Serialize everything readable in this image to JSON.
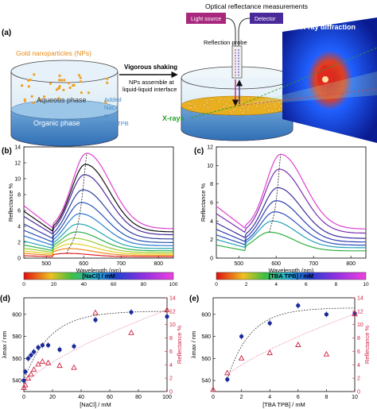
{
  "panel_a": {
    "label": "(a)",
    "np_label": "Gold nanoparticles (NPs)",
    "aqueous": "Aqueous phase",
    "organic": "Organic phase",
    "added": "Added",
    "nacl": "NaCl",
    "or": "or",
    "tbatpb": "TBA TPB",
    "shaking": "Vigorous shaking",
    "assemble1": "NPs assemble at",
    "assemble2": "liquid-liquid interface",
    "orm": "Optical reflectance measurements",
    "light_source": "Light source",
    "detector": "Detector",
    "probe": "Reflection probe",
    "xray_diff": "X-ray diffraction",
    "xrays": "X-rays"
  },
  "colorbar_nacl": {
    "label": "[NaCl] / mM",
    "ticks": [
      "0",
      "20",
      "40",
      "60",
      "80",
      "100"
    ]
  },
  "colorbar_tba": {
    "label": "[TBA TPB] / mM",
    "ticks": [
      "0",
      "2",
      "4",
      "6",
      "8",
      "10"
    ]
  },
  "chart_data": [
    {
      "type": "line",
      "panel": "(b)",
      "xlabel": "Wavelength (nm)",
      "ylabel": "Reflectance %",
      "xlim": [
        440,
        840
      ],
      "ylim": [
        0,
        14
      ],
      "xticks": [
        "500",
        "600",
        "700",
        "800"
      ],
      "yticks": [
        "0",
        "2",
        "4",
        "6",
        "8",
        "10",
        "12",
        "14"
      ],
      "series": [
        {
          "peak_nm": 608,
          "peak_val": 13.2,
          "color": "#e040d0"
        },
        {
          "peak_nm": 605,
          "peak_val": 11.8,
          "color": "#101010"
        },
        {
          "peak_nm": 602,
          "peak_val": 10.5,
          "color": "#4a2b9a"
        },
        {
          "peak_nm": 598,
          "peak_val": 8.6,
          "color": "#2f3fa0"
        },
        {
          "peak_nm": 594,
          "peak_val": 7.0,
          "color": "#2750b8"
        },
        {
          "peak_nm": 590,
          "peak_val": 5.6,
          "color": "#2a7ad0"
        },
        {
          "peak_nm": 585,
          "peak_val": 4.3,
          "color": "#22a6b0"
        },
        {
          "peak_nm": 580,
          "peak_val": 3.3,
          "color": "#2cb04c"
        },
        {
          "peak_nm": 574,
          "peak_val": 2.5,
          "color": "#9ccc2c"
        },
        {
          "peak_nm": 568,
          "peak_val": 1.8,
          "color": "#e0d020"
        },
        {
          "peak_nm": 560,
          "peak_val": 1.2,
          "color": "#f08a20"
        },
        {
          "peak_nm": 555,
          "peak_val": 0.6,
          "color": "#e02020"
        }
      ]
    },
    {
      "type": "line",
      "panel": "(c)",
      "xlabel": "Wavelength (nm)",
      "ylabel": "Reflectance %",
      "xlim": [
        440,
        840
      ],
      "ylim": [
        0,
        12
      ],
      "xticks": [
        "500",
        "600",
        "700",
        "800"
      ],
      "yticks": [
        "0",
        "2",
        "4",
        "6",
        "8",
        "10",
        "12"
      ],
      "series": [
        {
          "peak_nm": 612,
          "peak_val": 11.2,
          "color": "#e040d0"
        },
        {
          "peak_nm": 608,
          "peak_val": 9.6,
          "color": "#7a2fb0"
        },
        {
          "peak_nm": 604,
          "peak_val": 7.6,
          "color": "#3b2f9a"
        },
        {
          "peak_nm": 600,
          "peak_val": 6.2,
          "color": "#2f3fb0"
        },
        {
          "peak_nm": 596,
          "peak_val": 5.0,
          "color": "#2b50c0"
        },
        {
          "peak_nm": 590,
          "peak_val": 4.0,
          "color": "#22a0b8"
        },
        {
          "peak_nm": 582,
          "peak_val": 2.8,
          "color": "#30b040"
        }
      ]
    },
    {
      "type": "scatter",
      "panel": "(d)",
      "xlabel": "[NaCl] / mM",
      "ylabel_left": "λmax / nm",
      "ylabel_right": "Reflectance %",
      "xlim": [
        0,
        100
      ],
      "ylim_left": [
        530,
        615
      ],
      "ylim_right": [
        0,
        14
      ],
      "xticks": [
        "0",
        "20",
        "40",
        "60",
        "80",
        "100"
      ],
      "yticks_left": [
        "540",
        "560",
        "580",
        "600"
      ],
      "yticks_right": [
        "0",
        "2",
        "4",
        "6",
        "8",
        "10",
        "12",
        "14"
      ],
      "lambda_x": [
        0,
        1,
        3,
        5,
        7,
        10,
        13,
        17,
        25,
        35,
        50,
        75,
        100
      ],
      "lambda_y": [
        540,
        548,
        560,
        563,
        566,
        570,
        572,
        572,
        568,
        571,
        595,
        602,
        598
      ],
      "refl_x": [
        0,
        1,
        3,
        5,
        7,
        10,
        13,
        17,
        25,
        35,
        50,
        75,
        100
      ],
      "refl_y": [
        0.6,
        1.0,
        2.0,
        2.6,
        3.3,
        4.1,
        4.5,
        4.3,
        3.9,
        3.6,
        11.8,
        8.8,
        12.2
      ]
    },
    {
      "type": "scatter",
      "panel": "(e)",
      "xlabel": "[TBA TPB] / mM",
      "ylabel_left": "λmax / nm",
      "ylabel_right": "Reflectance %",
      "xlim": [
        0,
        10
      ],
      "ylim_left": [
        530,
        615
      ],
      "ylim_right": [
        0,
        14
      ],
      "xticks": [
        "0",
        "2",
        "4",
        "6",
        "8",
        "10"
      ],
      "yticks_left": [
        "540",
        "560",
        "580",
        "600"
      ],
      "yticks_right": [
        "0",
        "2",
        "4",
        "6",
        "8",
        "10",
        "12",
        "14"
      ],
      "lambda_x": [
        1,
        2,
        4,
        6,
        8,
        10
      ],
      "lambda_y": [
        541,
        580,
        592,
        608,
        600,
        601
      ],
      "refl_x": [
        0,
        1,
        2,
        4,
        6,
        8,
        10
      ],
      "refl_y": [
        0.3,
        2.8,
        5.0,
        5.8,
        7.0,
        5.6,
        11.6
      ]
    }
  ]
}
